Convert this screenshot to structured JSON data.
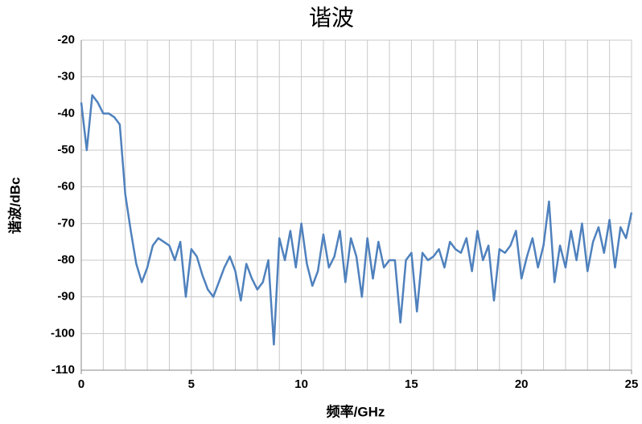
{
  "chart_data": {
    "type": "line",
    "title": "谐波",
    "x_label": "频率/GHz",
    "y_label": "谐波/dBc",
    "x": [
      0,
      0.25,
      0.5,
      0.75,
      1,
      1.25,
      1.5,
      1.75,
      2,
      2.25,
      2.5,
      2.75,
      3,
      3.25,
      3.5,
      3.75,
      4,
      4.25,
      4.5,
      4.75,
      5,
      5.25,
      5.5,
      5.75,
      6,
      6.25,
      6.5,
      6.75,
      7,
      7.25,
      7.5,
      7.75,
      8,
      8.25,
      8.5,
      8.75,
      9,
      9.25,
      9.5,
      9.75,
      10,
      10.25,
      10.5,
      10.75,
      11,
      11.25,
      11.5,
      11.75,
      12,
      12.25,
      12.5,
      12.75,
      13,
      13.25,
      13.5,
      13.75,
      14,
      14.25,
      14.5,
      14.75,
      15,
      15.25,
      15.5,
      15.75,
      16,
      16.25,
      16.5,
      16.75,
      17,
      17.25,
      17.5,
      17.75,
      18,
      18.25,
      18.5,
      18.75,
      19,
      19.25,
      19.5,
      19.75,
      20,
      20.25,
      20.5,
      20.75,
      21,
      21.25,
      21.5,
      21.75,
      22,
      22.25,
      22.5,
      22.75,
      23,
      23.25,
      23.5,
      23.75,
      24,
      24.25,
      24.5,
      24.75,
      25
    ],
    "series": [
      {
        "color": "#4f81bd",
        "values": [
          -37,
          -50,
          -35,
          -37,
          -40,
          -40,
          -41,
          -43,
          -62,
          -72,
          -81,
          -86,
          -82,
          -76,
          -74,
          -75,
          -76,
          -80,
          -75,
          -90,
          -77,
          -79,
          -84,
          -88,
          -90,
          -86,
          -82,
          -79,
          -83,
          -91,
          -81,
          -85,
          -88,
          -86,
          -80,
          -103,
          -74,
          -80,
          -72,
          -82,
          -70,
          -81,
          -87,
          -83,
          -73,
          -82,
          -79,
          -72,
          -86,
          -74,
          -79,
          -90,
          -74,
          -85,
          -75,
          -82,
          -80,
          -80,
          -97,
          -80,
          -78,
          -94,
          -78,
          -80,
          -79,
          -77,
          -82,
          -75,
          -77,
          -78,
          -74,
          -83,
          -72,
          -80,
          -76,
          -91,
          -77,
          -78,
          -76,
          -72,
          -85,
          -79,
          -74,
          -82,
          -76,
          -64,
          -86,
          -76,
          -82,
          -72,
          -80,
          -70,
          -83,
          -75,
          -71,
          -78,
          -69,
          -82,
          -71,
          -74,
          -67
        ]
      }
    ],
    "xlim": [
      0,
      25
    ],
    "xticks": [
      0,
      5,
      10,
      15,
      20,
      25
    ],
    "xgrid": [
      0,
      1,
      2,
      3,
      4,
      5,
      6,
      7,
      8,
      9,
      10,
      11,
      12,
      13,
      14,
      15,
      16,
      17,
      18,
      19,
      20,
      21,
      22,
      23,
      24,
      25
    ],
    "ylim": [
      -110,
      -20
    ],
    "yticks": [
      -110,
      -100,
      -90,
      -80,
      -70,
      -60,
      -50,
      -40,
      -30,
      -20
    ],
    "grid": true
  }
}
